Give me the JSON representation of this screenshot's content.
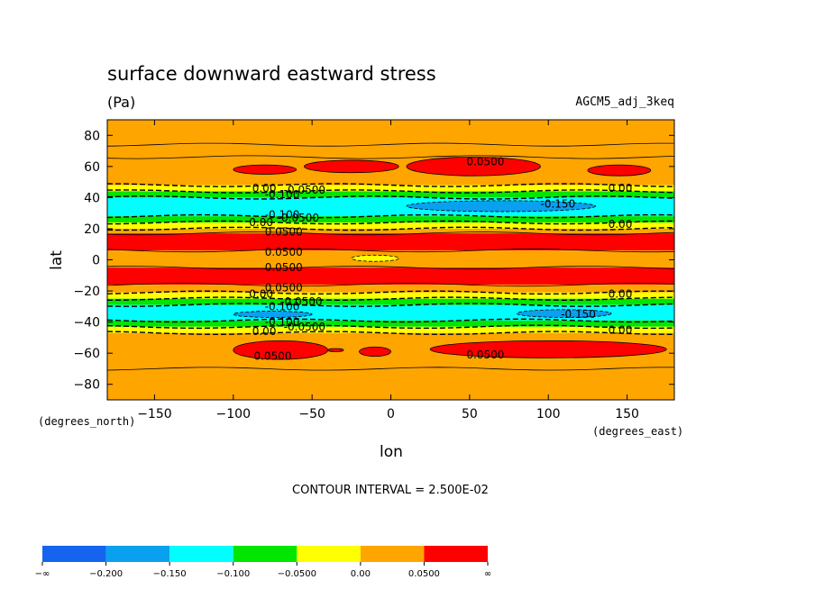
{
  "chart_data": {
    "type": "heatmap",
    "title": "surface downward eastward stress",
    "units": "(Pa)",
    "dataset": "AGCM5_adj_3keq",
    "xlabel": "lon",
    "ylabel": "lat",
    "x_units_label": "(degrees_east)",
    "y_units_label": "(degrees_north)",
    "xlim": [
      -180,
      180
    ],
    "ylim": [
      -90,
      90
    ],
    "x_ticks": [
      -150,
      -100,
      -50,
      0,
      50,
      100,
      150
    ],
    "y_ticks": [
      80,
      60,
      40,
      20,
      0,
      -20,
      -40,
      -60,
      -80
    ],
    "contour_interval_text": "CONTOUR INTERVAL = 2.500E-02",
    "colorbar": {
      "colors": [
        "#1464f0",
        "#0aa0f0",
        "#00ffff",
        "#00e600",
        "#ffff00",
        "#ffa500",
        "#ff0000"
      ],
      "labels": [
        "-∞",
        "-0.200",
        "-0.150",
        "-0.100",
        "-0.0500",
        "0.00",
        "0.0500",
        "∞"
      ]
    },
    "zonal_bands": [
      {
        "lat": [
          74,
          90
        ],
        "class": "0.00 to 0.0500"
      },
      {
        "lat": [
          66,
          74
        ],
        "class": "0.00 to 0.0500"
      },
      {
        "lat": [
          48,
          66
        ],
        "class": "0.00 to 0.0500 with >0.0500 patches"
      },
      {
        "lat": [
          44,
          48
        ],
        "class": "-0.0500 to 0.00"
      },
      {
        "lat": [
          40,
          44
        ],
        "class": "-0.100 to -0.0500"
      },
      {
        "lat": [
          28,
          40
        ],
        "class": "-0.150 to -0.100"
      },
      {
        "lat": [
          24,
          28
        ],
        "class": "-0.100 to -0.0500"
      },
      {
        "lat": [
          20,
          24
        ],
        "class": "-0.0500 to 0.00"
      },
      {
        "lat": [
          17,
          20
        ],
        "class": "0.00 to 0.0500"
      },
      {
        "lat": [
          6,
          17
        ],
        "class": ">0.0500"
      },
      {
        "lat": [
          -5,
          6
        ],
        "class": "0.00 to 0.0500"
      },
      {
        "lat": [
          -16,
          -5
        ],
        "class": ">0.0500"
      },
      {
        "lat": [
          -21,
          -16
        ],
        "class": "0.00 to 0.0500"
      },
      {
        "lat": [
          -25,
          -21
        ],
        "class": "-0.0500 to 0.00"
      },
      {
        "lat": [
          -29,
          -25
        ],
        "class": "-0.100 to -0.0500"
      },
      {
        "lat": [
          -39,
          -29
        ],
        "class": "-0.150 to -0.100"
      },
      {
        "lat": [
          -43,
          -39
        ],
        "class": "-0.100 to -0.0500"
      },
      {
        "lat": [
          -47,
          -43
        ],
        "class": "-0.0500 to 0.00"
      },
      {
        "lat": [
          -70,
          -47
        ],
        "class": "0.00 to 0.0500 with >0.0500 patches"
      },
      {
        "lat": [
          -90,
          -70
        ],
        "class": "0.00 to 0.0500"
      }
    ],
    "patches": [
      {
        "class": ">0.0500",
        "lon": [
          -100,
          -60
        ],
        "lat": [
          55,
          61
        ]
      },
      {
        "class": ">0.0500",
        "lon": [
          -55,
          5
        ],
        "lat": [
          56,
          64
        ]
      },
      {
        "class": ">0.0500",
        "lon": [
          10,
          95
        ],
        "lat": [
          54,
          66
        ]
      },
      {
        "class": ">0.0500",
        "lon": [
          125,
          165
        ],
        "lat": [
          54,
          61
        ]
      },
      {
        "class": "-0.200 to -0.150",
        "lon": [
          10,
          130
        ],
        "lat": [
          31,
          38
        ]
      },
      {
        "class": "-0.200 to -0.150",
        "lon": [
          -100,
          -50
        ],
        "lat": [
          -37,
          -33
        ]
      },
      {
        "class": "-0.200 to -0.150",
        "lon": [
          80,
          140
        ],
        "lat": [
          -37,
          -32
        ]
      },
      {
        "class": "-0.0500 to 0.00",
        "lon": [
          -25,
          5
        ],
        "lat": [
          -1,
          3
        ]
      },
      {
        "class": ">0.0500",
        "lon": [
          -100,
          -40
        ],
        "lat": [
          -64,
          -52
        ]
      },
      {
        "class": ">0.0500",
        "lon": [
          -40,
          -30
        ],
        "lat": [
          -59,
          -57
        ]
      },
      {
        "class": ">0.0500",
        "lon": [
          -20,
          0
        ],
        "lat": [
          -62,
          -56
        ]
      },
      {
        "class": ">0.0500",
        "lon": [
          25,
          175
        ],
        "lat": [
          -63,
          -52
        ]
      }
    ],
    "contour_labels": [
      {
        "text": "0.0500",
        "lon": 48,
        "lat": 63
      },
      {
        "text": "0.00",
        "lon": -88,
        "lat": 46
      },
      {
        "text": "-0.0500",
        "lon": -68,
        "lat": 45
      },
      {
        "text": "-0.100",
        "lon": -80,
        "lat": 42
      },
      {
        "text": "-0.150",
        "lon": 95,
        "lat": 36
      },
      {
        "text": "0.00",
        "lon": 138,
        "lat": 46
      },
      {
        "text": "-0.100",
        "lon": -80,
        "lat": 29
      },
      {
        "text": "-0.0500",
        "lon": -72,
        "lat": 27
      },
      {
        "text": "0.00",
        "lon": -90,
        "lat": 24
      },
      {
        "text": "0.0500",
        "lon": -80,
        "lat": 18
      },
      {
        "text": "0.00",
        "lon": 138,
        "lat": 23
      },
      {
        "text": "0.0500",
        "lon": -80,
        "lat": 5
      },
      {
        "text": "0.0500",
        "lon": -80,
        "lat": -5
      },
      {
        "text": "0.0500",
        "lon": -80,
        "lat": -18
      },
      {
        "text": "0.00",
        "lon": -90,
        "lat": -22
      },
      {
        "text": "-0.0500",
        "lon": -70,
        "lat": -27
      },
      {
        "text": "-0.100",
        "lon": -80,
        "lat": -30
      },
      {
        "text": "0.00",
        "lon": 138,
        "lat": -22
      },
      {
        "text": "-0.150",
        "lon": 108,
        "lat": -35
      },
      {
        "text": "-0.100",
        "lon": -80,
        "lat": -40
      },
      {
        "text": "-0.0500",
        "lon": -68,
        "lat": -43
      },
      {
        "text": "0.00",
        "lon": -88,
        "lat": -46
      },
      {
        "text": "0.00",
        "lon": 138,
        "lat": -45
      },
      {
        "text": "0.0500",
        "lon": -87,
        "lat": -62
      },
      {
        "text": "0.0500",
        "lon": 48,
        "lat": -61
      }
    ]
  }
}
